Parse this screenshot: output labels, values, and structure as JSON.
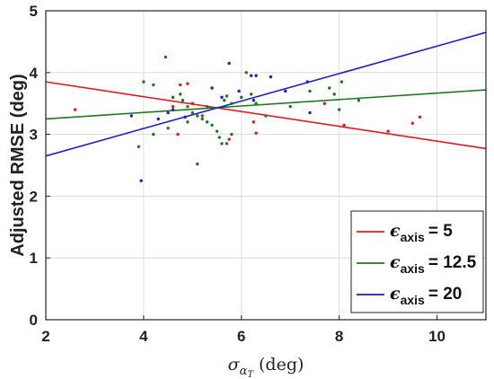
{
  "chart_data": {
    "type": "scatter",
    "xlabel_symbol": "σ",
    "xlabel_sub": "α",
    "xlabel_subsub": "T",
    "xlabel_units": "(deg)",
    "ylabel": "Adjusted RMSE (deg)",
    "xlim": [
      2,
      11
    ],
    "ylim": [
      0,
      5
    ],
    "xticks": [
      2,
      4,
      6,
      8,
      10
    ],
    "yticks": [
      0,
      1,
      2,
      3,
      4,
      5
    ],
    "grid": true,
    "legend_position": "bottom-right",
    "series": [
      {
        "name": "= 5",
        "legend_symbol": "ϵ",
        "legend_sub": "axis",
        "color": "#e31a1c",
        "fit_line": [
          [
            2,
            3.85
          ],
          [
            11,
            2.77
          ]
        ],
        "points": [
          [
            2.6,
            3.4
          ],
          [
            4.75,
            3.8
          ],
          [
            4.9,
            3.82
          ],
          [
            5.0,
            3.5
          ],
          [
            5.75,
            2.92
          ],
          [
            6.3,
            3.02
          ],
          [
            6.25,
            3.2
          ],
          [
            7.7,
            3.5
          ],
          [
            8.1,
            3.15
          ],
          [
            9.0,
            3.05
          ],
          [
            9.5,
            3.18
          ],
          [
            9.65,
            3.28
          ],
          [
            4.7,
            3.0
          ],
          [
            5.2,
            3.3
          ],
          [
            4.6,
            3.45
          ]
        ]
      },
      {
        "name": "= 12.5",
        "legend_symbol": "ϵ",
        "legend_sub": "axis",
        "color": "#1b7a1b",
        "fit_line": [
          [
            2,
            3.25
          ],
          [
            11,
            3.72
          ]
        ],
        "points": [
          [
            4.45,
            4.25
          ],
          [
            4.0,
            3.85
          ],
          [
            4.2,
            3.8
          ],
          [
            4.6,
            3.6
          ],
          [
            4.75,
            3.65
          ],
          [
            4.8,
            3.55
          ],
          [
            4.9,
            3.45
          ],
          [
            5.0,
            3.35
          ],
          [
            5.1,
            3.3
          ],
          [
            5.2,
            3.25
          ],
          [
            5.3,
            3.2
          ],
          [
            5.4,
            3.15
          ],
          [
            5.5,
            3.05
          ],
          [
            5.55,
            2.95
          ],
          [
            5.6,
            2.85
          ],
          [
            5.7,
            2.85
          ],
          [
            5.8,
            3.0
          ],
          [
            5.65,
            3.55
          ],
          [
            5.7,
            3.62
          ],
          [
            5.8,
            3.5
          ],
          [
            6.0,
            3.6
          ],
          [
            6.1,
            4.0
          ],
          [
            6.3,
            3.5
          ],
          [
            6.5,
            3.3
          ],
          [
            5.1,
            2.52
          ],
          [
            3.9,
            2.8
          ],
          [
            4.2,
            3.0
          ],
          [
            4.9,
            3.2
          ],
          [
            5.3,
            3.45
          ],
          [
            7.0,
            3.45
          ],
          [
            7.4,
            3.7
          ],
          [
            7.8,
            3.75
          ],
          [
            7.9,
            3.65
          ],
          [
            8.0,
            3.4
          ],
          [
            8.05,
            3.85
          ],
          [
            8.4,
            3.55
          ],
          [
            4.5,
            3.1
          ],
          [
            6.2,
            3.65
          ]
        ]
      },
      {
        "name": "= 20",
        "legend_symbol": "ϵ",
        "legend_sub": "axis",
        "color": "#1f1fcc",
        "fit_line": [
          [
            2,
            2.65
          ],
          [
            11,
            4.65
          ]
        ],
        "points": [
          [
            3.75,
            3.3
          ],
          [
            3.95,
            2.25
          ],
          [
            4.3,
            3.25
          ],
          [
            4.5,
            3.35
          ],
          [
            4.85,
            3.28
          ],
          [
            5.4,
            3.75
          ],
          [
            5.75,
            4.15
          ],
          [
            5.95,
            3.7
          ],
          [
            6.2,
            3.95
          ],
          [
            6.3,
            3.95
          ],
          [
            6.6,
            3.93
          ],
          [
            6.9,
            3.7
          ],
          [
            7.35,
            3.85
          ],
          [
            7.4,
            3.35
          ],
          [
            5.6,
            3.6
          ],
          [
            6.25,
            3.55
          ],
          [
            4.6,
            3.4
          ]
        ]
      }
    ]
  }
}
